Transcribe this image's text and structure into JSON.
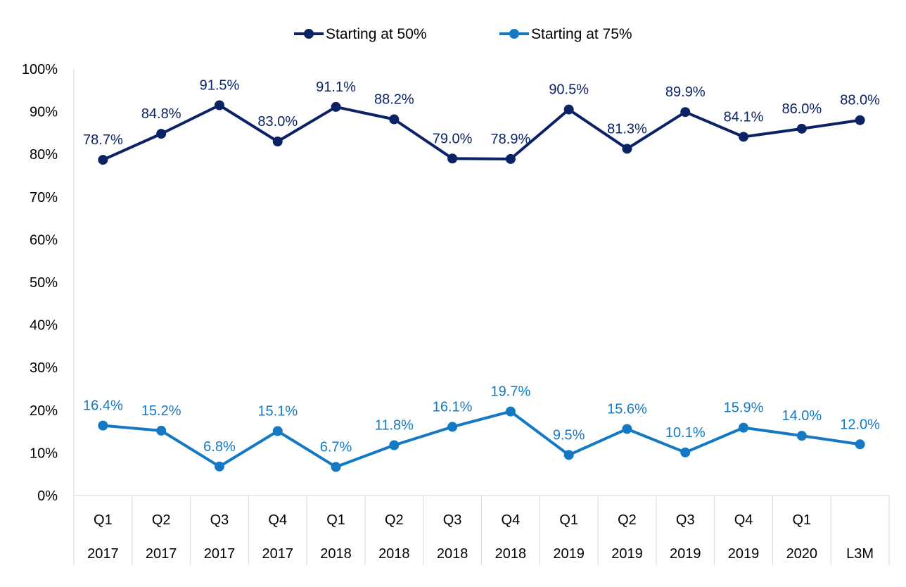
{
  "chart_data": {
    "type": "line",
    "title": "",
    "xlabel": "",
    "ylabel": "",
    "categories": [
      {
        "quarter": "Q1",
        "year": "2017"
      },
      {
        "quarter": "Q2",
        "year": "2017"
      },
      {
        "quarter": "Q3",
        "year": "2017"
      },
      {
        "quarter": "Q4",
        "year": "2017"
      },
      {
        "quarter": "Q1",
        "year": "2018"
      },
      {
        "quarter": "Q2",
        "year": "2018"
      },
      {
        "quarter": "Q3",
        "year": "2018"
      },
      {
        "quarter": "Q4",
        "year": "2018"
      },
      {
        "quarter": "Q1",
        "year": "2019"
      },
      {
        "quarter": "Q2",
        "year": "2019"
      },
      {
        "quarter": "Q3",
        "year": "2019"
      },
      {
        "quarter": "Q4",
        "year": "2019"
      },
      {
        "quarter": "Q1",
        "year": "2020"
      },
      {
        "quarter": "",
        "year": "L3M"
      }
    ],
    "ylim": [
      0,
      100
    ],
    "yticks": [
      "0%",
      "10%",
      "20%",
      "30%",
      "40%",
      "50%",
      "60%",
      "70%",
      "80%",
      "90%",
      "100%"
    ],
    "grid": false,
    "legend_position": "top",
    "series": [
      {
        "name": "Starting at 50%",
        "color": "#0b2265",
        "values": [
          78.7,
          84.8,
          91.5,
          83.0,
          91.1,
          88.2,
          79.0,
          78.9,
          90.5,
          81.3,
          89.9,
          84.1,
          86.0,
          88.0
        ],
        "labels": [
          "78.7%",
          "84.8%",
          "91.5%",
          "83.0%",
          "91.1%",
          "88.2%",
          "79.0%",
          "78.9%",
          "90.5%",
          "81.3%",
          "89.9%",
          "84.1%",
          "86.0%",
          "88.0%"
        ]
      },
      {
        "name": "Starting at 75%",
        "color": "#1479c4",
        "values": [
          16.4,
          15.2,
          6.8,
          15.1,
          6.7,
          11.8,
          16.1,
          19.7,
          9.5,
          15.6,
          10.1,
          15.9,
          14.0,
          12.0
        ],
        "labels": [
          "16.4%",
          "15.2%",
          "6.8%",
          "15.1%",
          "6.7%",
          "11.8%",
          "16.1%",
          "19.7%",
          "9.5%",
          "15.6%",
          "10.1%",
          "15.9%",
          "14.0%",
          "12.0%"
        ]
      }
    ]
  }
}
